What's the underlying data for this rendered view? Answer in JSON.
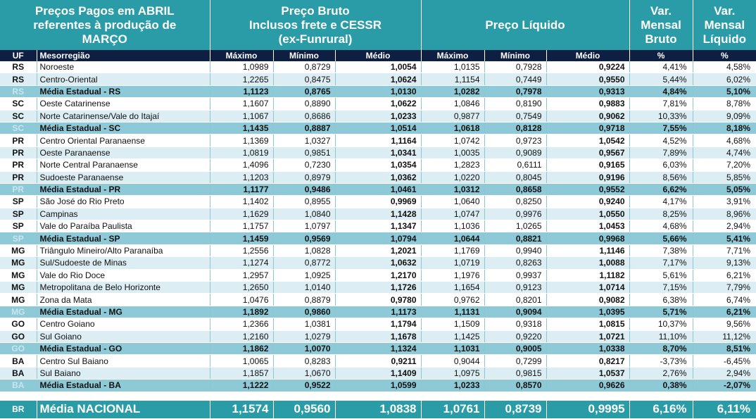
{
  "header": {
    "title_line1": "Preços Pagos em ABRIL",
    "title_line2": "referentes à produção de",
    "title_line3": "MARÇO",
    "bruto_line1": "Preço Bruto",
    "bruto_line2": "Inclusos frete e CESSR",
    "bruto_line3": "(ex-Funrural)",
    "liquido": "Preço Líquido",
    "var_bruto_line1": "Var.",
    "var_bruto_line2": "Mensal",
    "var_bruto_line3": "Bruto",
    "var_liq_line1": "Var.",
    "var_liq_line2": "Mensal",
    "var_liq_line3": "Líquido"
  },
  "columns": [
    "UF",
    "Mesorregião",
    "Máximo",
    "Mínimo",
    "Médio",
    "Máximo",
    "Mínimo",
    "Médio",
    "%",
    "%"
  ],
  "rows": [
    {
      "uf": "RS",
      "reg": "Noroeste",
      "bmax": "1,0989",
      "bmin": "0,8729",
      "bmed": "1,0054",
      "lmax": "1,0135",
      "lmin": "0,7928",
      "lmed": "0,9224",
      "vb": "4,41%",
      "vl": "4,58%",
      "avg": false
    },
    {
      "uf": "RS",
      "reg": "Centro-Oriental",
      "bmax": "1,2265",
      "bmin": "0,8475",
      "bmed": "1,0624",
      "lmax": "1,1154",
      "lmin": "0,7449",
      "lmed": "0,9550",
      "vb": "5,44%",
      "vl": "6,02%",
      "avg": false
    },
    {
      "uf": "RS",
      "reg": "Média Estadual - RS",
      "bmax": "1,1123",
      "bmin": "0,8765",
      "bmed": "1,0130",
      "lmax": "1,0282",
      "lmin": "0,7978",
      "lmed": "0,9313",
      "vb": "4,84%",
      "vl": "5,10%",
      "avg": true
    },
    {
      "uf": "SC",
      "reg": "Oeste Catarinense",
      "bmax": "1,1607",
      "bmin": "0,8890",
      "bmed": "1,0622",
      "lmax": "1,0846",
      "lmin": "0,8190",
      "lmed": "0,9883",
      "vb": "7,81%",
      "vl": "8,78%",
      "avg": false
    },
    {
      "uf": "SC",
      "reg": "Norte Catarinense/Vale do Itajaí",
      "bmax": "1,1067",
      "bmin": "0,8686",
      "bmed": "1,0233",
      "lmax": "0,9877",
      "lmin": "0,7549",
      "lmed": "0,9062",
      "vb": "10,33%",
      "vl": "9,09%",
      "avg": false
    },
    {
      "uf": "SC",
      "reg": "Média Estadual - SC",
      "bmax": "1,1435",
      "bmin": "0,8887",
      "bmed": "1,0514",
      "lmax": "1,0618",
      "lmin": "0,8128",
      "lmed": "0,9718",
      "vb": "7,55%",
      "vl": "8,18%",
      "avg": true
    },
    {
      "uf": "PR",
      "reg": "Centro Oriental Paranaense",
      "bmax": "1,1369",
      "bmin": "1,0327",
      "bmed": "1,1164",
      "lmax": "1,0742",
      "lmin": "0,9723",
      "lmed": "1,0542",
      "vb": "4,52%",
      "vl": "4,68%",
      "avg": false
    },
    {
      "uf": "PR",
      "reg": "Oeste Paranaense",
      "bmax": "1,0819",
      "bmin": "0,9851",
      "bmed": "1,0341",
      "lmax": "1,0035",
      "lmin": "0,9089",
      "lmed": "0,9567",
      "vb": "7,89%",
      "vl": "4,74%",
      "avg": false
    },
    {
      "uf": "PR",
      "reg": "Norte Central Paranaense",
      "bmax": "1,4096",
      "bmin": "0,7230",
      "bmed": "1,0354",
      "lmax": "1,2823",
      "lmin": "0,6111",
      "lmed": "0,9165",
      "vb": "6,03%",
      "vl": "7,20%",
      "avg": false
    },
    {
      "uf": "PR",
      "reg": "Sudoeste Paranaense",
      "bmax": "1,1203",
      "bmin": "0,8979",
      "bmed": "1,0362",
      "lmax": "1,0220",
      "lmin": "0,8045",
      "lmed": "0,9196",
      "vb": "8,56%",
      "vl": "5,85%",
      "avg": false
    },
    {
      "uf": "PR",
      "reg": "Média Estadual - PR",
      "bmax": "1,1177",
      "bmin": "0,9486",
      "bmed": "1,0461",
      "lmax": "1,0312",
      "lmin": "0,8658",
      "lmed": "0,9552",
      "vb": "6,62%",
      "vl": "5,05%",
      "avg": true
    },
    {
      "uf": "SP",
      "reg": "São José do Rio Preto",
      "bmax": "1,1402",
      "bmin": "0,8955",
      "bmed": "0,9969",
      "lmax": "1,0640",
      "lmin": "0,8250",
      "lmed": "0,9240",
      "vb": "4,17%",
      "vl": "3,91%",
      "avg": false
    },
    {
      "uf": "SP",
      "reg": "Campinas",
      "bmax": "1,1629",
      "bmin": "1,0840",
      "bmed": "1,1428",
      "lmax": "1,0747",
      "lmin": "0,9976",
      "lmed": "1,0550",
      "vb": "8,25%",
      "vl": "8,96%",
      "avg": false
    },
    {
      "uf": "SP",
      "reg": "Vale do Paraíba Paulista",
      "bmax": "1,1757",
      "bmin": "1,0797",
      "bmed": "1,1347",
      "lmax": "1,1036",
      "lmin": "1,0265",
      "lmed": "1,0453",
      "vb": "4,68%",
      "vl": "2,94%",
      "avg": false
    },
    {
      "uf": "SP",
      "reg": "Média Estadual - SP",
      "bmax": "1,1459",
      "bmin": "0,9569",
      "bmed": "1,0794",
      "lmax": "1,0644",
      "lmin": "0,8821",
      "lmed": "0,9968",
      "vb": "5,66%",
      "vl": "5,41%",
      "avg": true
    },
    {
      "uf": "MG",
      "reg": "Triângulo Mineiro/Alto Paranaíba",
      "bmax": "1,2556",
      "bmin": "1,0828",
      "bmed": "1,2021",
      "lmax": "1,1769",
      "lmin": "0,9940",
      "lmed": "1,1146",
      "vb": "7,38%",
      "vl": "7,71%",
      "avg": false
    },
    {
      "uf": "MG",
      "reg": "Sul/Sudoeste de Minas",
      "bmax": "1,1274",
      "bmin": "0,8772",
      "bmed": "1,0632",
      "lmax": "1,0719",
      "lmin": "0,8263",
      "lmed": "1,0088",
      "vb": "7,17%",
      "vl": "9,13%",
      "avg": false
    },
    {
      "uf": "MG",
      "reg": "Vale do Rio Doce",
      "bmax": "1,2957",
      "bmin": "1,0925",
      "bmed": "1,2170",
      "lmax": "1,1976",
      "lmin": "0,9937",
      "lmed": "1,1182",
      "vb": "5,61%",
      "vl": "6,21%",
      "avg": false
    },
    {
      "uf": "MG",
      "reg": "Metropolitana de Belo Horizonte",
      "bmax": "1,2650",
      "bmin": "1,0140",
      "bmed": "1,1726",
      "lmax": "1,1654",
      "lmin": "0,9123",
      "lmed": "1,0714",
      "vb": "7,15%",
      "vl": "7,79%",
      "avg": false
    },
    {
      "uf": "MG",
      "reg": "Zona da Mata",
      "bmax": "1,0476",
      "bmin": "0,8879",
      "bmed": "0,9780",
      "lmax": "0,9762",
      "lmin": "0,8201",
      "lmed": "0,9082",
      "vb": "6,38%",
      "vl": "6,74%",
      "avg": false
    },
    {
      "uf": "MG",
      "reg": "Média Estadual - MG",
      "bmax": "1,1892",
      "bmin": "0,9860",
      "bmed": "1,1173",
      "lmax": "1,1131",
      "lmin": "0,9094",
      "lmed": "1,0395",
      "vb": "5,71%",
      "vl": "6,21%",
      "avg": true
    },
    {
      "uf": "GO",
      "reg": "Centro Goiano",
      "bmax": "1,2366",
      "bmin": "1,0381",
      "bmed": "1,1794",
      "lmax": "1,1509",
      "lmin": "0,9318",
      "lmed": "1,0815",
      "vb": "10,37%",
      "vl": "9,56%",
      "avg": false
    },
    {
      "uf": "GO",
      "reg": "Sul Goiano",
      "bmax": "1,2160",
      "bmin": "1,0279",
      "bmed": "1,1678",
      "lmax": "1,1425",
      "lmin": "0,9220",
      "lmed": "1,0721",
      "vb": "11,10%",
      "vl": "11,12%",
      "avg": false
    },
    {
      "uf": "GO",
      "reg": "Média Estadual - GO",
      "bmax": "1,1862",
      "bmin": "1,0070",
      "bmed": "1,1324",
      "lmax": "1,1031",
      "lmin": "0,9005",
      "lmed": "1,0338",
      "vb": "8,70%",
      "vl": "8,51%",
      "avg": true
    },
    {
      "uf": "BA",
      "reg": "Centro Sul Baiano",
      "bmax": "1,0065",
      "bmin": "0,8283",
      "bmed": "0,9211",
      "lmax": "0,9044",
      "lmin": "0,7299",
      "lmed": "0,8217",
      "vb": "-3,73%",
      "vl": "-6,45%",
      "avg": false
    },
    {
      "uf": "BA",
      "reg": "Sul Baiano",
      "bmax": "1,1857",
      "bmin": "1,0670",
      "bmed": "1,1409",
      "lmax": "1,0975",
      "lmin": "0,9815",
      "lmed": "1,0537",
      "vb": "2,76%",
      "vl": "2,94%",
      "avg": false
    },
    {
      "uf": "BA",
      "reg": "Média Estadual - BA",
      "bmax": "1,1222",
      "bmin": "0,9522",
      "bmed": "1,0599",
      "lmax": "1,0233",
      "lmin": "0,8570",
      "lmed": "0,9626",
      "vb": "0,38%",
      "vl": "-2,07%",
      "avg": true
    }
  ],
  "national": {
    "uf": "BR",
    "reg": "Média NACIONAL",
    "bmax": "1,1574",
    "bmin": "0,9560",
    "bmed": "1,0838",
    "lmax": "1,0761",
    "lmin": "0,8739",
    "lmed": "0,9995",
    "vb": "6,16%",
    "vl": "6,11%"
  }
}
